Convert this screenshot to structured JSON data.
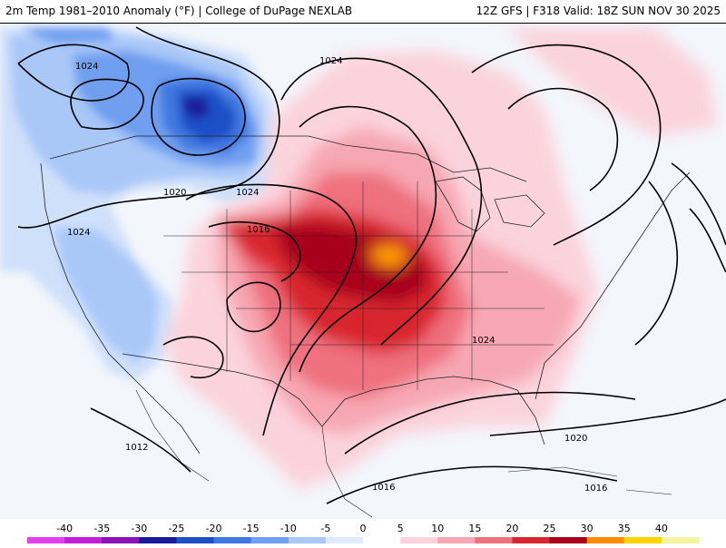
{
  "header": {
    "title_left": "2m Temp 1981–2010 Anomaly (°F) | College of DuPage NEXLAB",
    "title_right": "12Z GFS | F318 Valid: 18Z SUN NOV 30 2025"
  },
  "isobars": {
    "labels": [
      "1024",
      "1024",
      "1020",
      "1024",
      "1024",
      "1016",
      "1024",
      "1012",
      "1020",
      "1016",
      "1016"
    ]
  },
  "legend": {
    "ticks": [
      "-40",
      "-35",
      "-30",
      "-25",
      "-20",
      "-15",
      "-10",
      "-5",
      "0",
      "5",
      "10",
      "15",
      "20",
      "25",
      "30",
      "35",
      "40"
    ],
    "colors": [
      "#e23ff0",
      "#c21dd8",
      "#8a12b8",
      "#1a1a9a",
      "#1f4fc8",
      "#3f78e0",
      "#6f9ff0",
      "#a9c8f8",
      "#dfeafc",
      "#ffffff",
      "#fbd3dc",
      "#f6a7b3",
      "#ef6f7e",
      "#d9262f",
      "#a8001c",
      "#ff8c00",
      "#ffd400",
      "#f5f5a0"
    ]
  }
}
